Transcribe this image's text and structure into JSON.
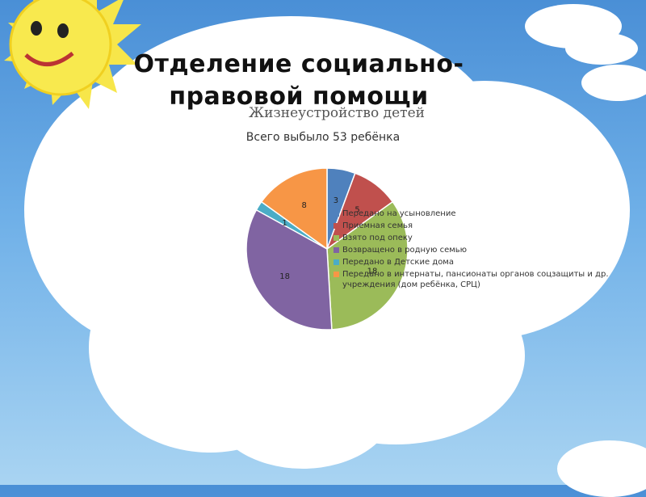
{
  "title": "Отделение социально-правовой помощи",
  "colors": {
    "sky_top": "#4a8fd6",
    "sun": "#f7e64a",
    "cloud": "#ffffff"
  },
  "chart_data": {
    "type": "pie",
    "title": "Жизнеустройство детей",
    "subtitle": "Всего выбыло 53 ребёнка",
    "legend_position": "right",
    "categories": [
      "Передано на усыновление",
      "Приемная семья",
      "Взято под опеку",
      "Возвращено в родную семью",
      "Передано в Детские дома",
      "Передано в интернаты, пансионаты органов соцзащиты и др. учреждения (дом ребёнка, СРЦ)"
    ],
    "values": [
      3,
      5,
      18,
      18,
      1,
      8
    ],
    "value_labels": [
      "3",
      "5",
      "18",
      "18",
      "1",
      "8"
    ],
    "colors": [
      "#4f81bd",
      "#c0504d",
      "#9bbb59",
      "#8064a2",
      "#4bacc6",
      "#f79646"
    ]
  }
}
